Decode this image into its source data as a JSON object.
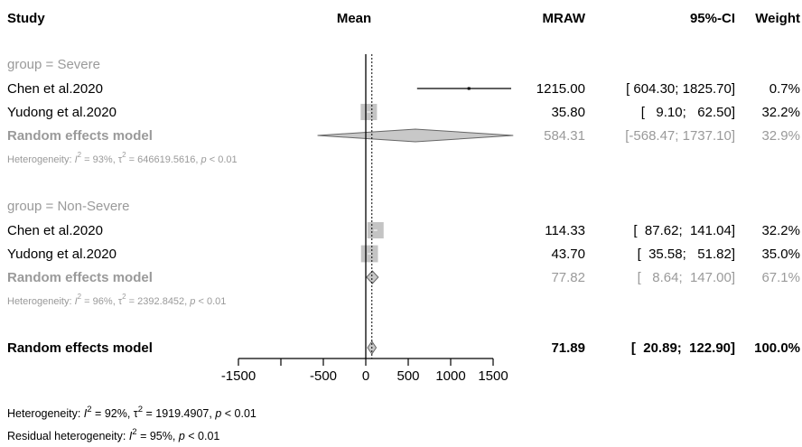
{
  "headers": {
    "study": "Study",
    "mean": "Mean",
    "mraw": "MRAW",
    "ci": "95%-CI",
    "weight": "Weight"
  },
  "rows": [
    {
      "kind": "group",
      "label": "group = Severe"
    },
    {
      "kind": "study",
      "label": "Chen et al.2020",
      "mraw": "1215.00",
      "ci": "[ 604.30; 1825.70]",
      "weight": "0.7%"
    },
    {
      "kind": "study",
      "label": "Yudong et al.2020",
      "mraw": "35.80",
      "ci": "[   9.10;   62.50]",
      "weight": "32.2%"
    },
    {
      "kind": "pooled",
      "label": "Random effects model",
      "mraw": "584.31",
      "ci": "[-568.47; 1737.10]",
      "weight": "32.9%"
    },
    {
      "kind": "het",
      "prefix": "Heterogeneity: ",
      "i2": "93%",
      "tau2": "646619.5616",
      "p": "< 0.01"
    },
    {
      "kind": "group",
      "label": "group = Non-Severe"
    },
    {
      "kind": "study",
      "label": "Chen et al.2020",
      "mraw": "114.33",
      "ci": "[  87.62;  141.04]",
      "weight": "32.2%"
    },
    {
      "kind": "study",
      "label": "Yudong et al.2020",
      "mraw": "43.70",
      "ci": "[  35.58;   51.82]",
      "weight": "35.0%"
    },
    {
      "kind": "pooled",
      "label": "Random effects model",
      "mraw": "77.82",
      "ci": "[   8.64;  147.00]",
      "weight": "67.1%"
    },
    {
      "kind": "het",
      "prefix": "Heterogeneity: ",
      "i2": "96%",
      "tau2": "2392.8452",
      "p": "< 0.01"
    },
    {
      "kind": "overall",
      "label": "Random effects model",
      "mraw": "71.89",
      "ci": "[  20.89;  122.90]",
      "weight": "100.0%"
    }
  ],
  "footer": {
    "heterogeneity": {
      "prefix": "Heterogeneity: ",
      "i2": "92%",
      "tau2": "1919.4907",
      "p": "< 0.01"
    },
    "residual": {
      "prefix": "Residual heterogeneity: ",
      "i2": "95%",
      "p": "< 0.01"
    }
  },
  "chart_data": {
    "type": "forest",
    "xlim": [
      -1500,
      1500
    ],
    "xticks": [
      -1500,
      -500,
      0,
      500,
      1000,
      1500
    ],
    "reference_line": 0,
    "overall_line": 71.89,
    "colors": {
      "text": "#000000",
      "muted": "#9a9a9a",
      "box": "#c4c4c4",
      "diamond_fill": "#c8c8c8",
      "diamond_stroke": "#666666"
    },
    "studies": [
      {
        "group": "Severe",
        "study": "Chen et al.2020",
        "mean": 1215.0,
        "lower": 604.3,
        "upper": 1825.7,
        "weight": 0.7
      },
      {
        "group": "Severe",
        "study": "Yudong et al.2020",
        "mean": 35.8,
        "lower": 9.1,
        "upper": 62.5,
        "weight": 32.2
      },
      {
        "group": "Non-Severe",
        "study": "Chen et al.2020",
        "mean": 114.33,
        "lower": 87.62,
        "upper": 141.04,
        "weight": 32.2
      },
      {
        "group": "Non-Severe",
        "study": "Yudong et al.2020",
        "mean": 43.7,
        "lower": 35.58,
        "upper": 51.82,
        "weight": 35.0
      }
    ],
    "pooled": [
      {
        "group": "Severe",
        "mean": 584.31,
        "lower": -568.47,
        "upper": 1737.1,
        "weight": 32.9
      },
      {
        "group": "Non-Severe",
        "mean": 77.82,
        "lower": 8.64,
        "upper": 147.0,
        "weight": 67.1
      },
      {
        "group": "Overall",
        "mean": 71.89,
        "lower": 20.89,
        "upper": 122.9,
        "weight": 100.0
      }
    ]
  }
}
